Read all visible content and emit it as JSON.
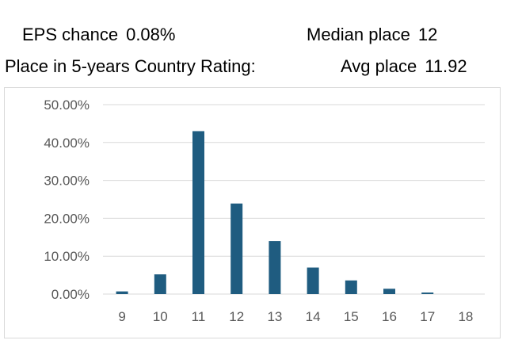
{
  "header": {
    "eps_label": "EPS chance",
    "eps_value": "0.08%",
    "median_label": "Median place",
    "median_value": "12",
    "rating_label": "Place in 5-years Country  Rating:",
    "avg_label": "Avg place",
    "avg_value": "11.92"
  },
  "chart_data": {
    "type": "bar",
    "title": "",
    "xlabel": "",
    "ylabel": "",
    "categories": [
      "9",
      "10",
      "11",
      "12",
      "13",
      "14",
      "15",
      "16",
      "17",
      "18"
    ],
    "values": [
      0.7,
      5.2,
      43.0,
      23.9,
      14.0,
      7.0,
      3.6,
      1.4,
      0.4,
      0.0
    ],
    "value_format": "percent",
    "ylim": [
      0,
      50
    ],
    "yticks": [
      "0.00%",
      "10.00%",
      "20.00%",
      "30.00%",
      "40.00%",
      "50.00%"
    ],
    "bar_color": "#1f5c80",
    "grid": true,
    "legend": "none"
  }
}
